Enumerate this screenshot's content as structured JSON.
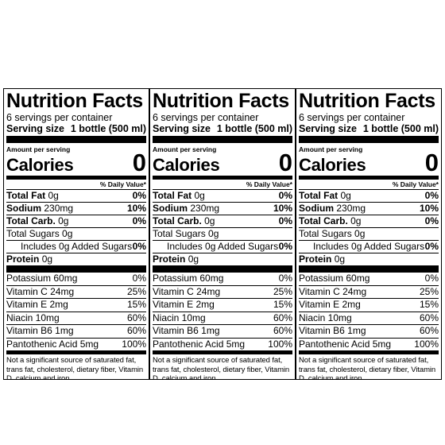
{
  "labels": [
    {
      "title": "Nutrition Facts",
      "servings_per_container": "6 servings per container",
      "serving_size_label": "Serving size",
      "serving_size_value": "1 bottle (500 ml)",
      "amount_per_serving": "Amount per serving",
      "calories_label": "Calories",
      "calories_value": "0",
      "daily_value_header": "% Daily Value*",
      "total_fat_label": "Total Fat",
      "total_fat_amount": "0g",
      "total_fat_dv": "0%",
      "sodium_label": "Sodium",
      "sodium_amount": "230mg",
      "sodium_dv": "10%",
      "total_carb_label": "Total Carb.",
      "total_carb_amount": "0g",
      "total_carb_dv": "0%",
      "total_sugars": "Total Sugars 0g",
      "added_sugars": "Includes 0g Added Sugars",
      "added_sugars_dv": "0%",
      "protein_label": "Protein",
      "protein_amount": "0g",
      "potassium": "Potassium  60mg",
      "potassium_dv": "0%",
      "vitamin_c": "Vitamin C  24mg",
      "vitamin_c_dv": "25%",
      "vitamin_e": "Vitamin E  2mg",
      "vitamin_e_dv": "15%",
      "niacin": "Niacin  10mg",
      "niacin_dv": "60%",
      "vitamin_b6": "Vitamin B6  1mg",
      "vitamin_b6_dv": "60%",
      "pantothenic_acid": "Pantothenic Acid   5mg",
      "pantothenic_acid_dv": "100%",
      "footnote": "Not a significant source of saturated fat, trans fat, cholesterol, dietary fiber, Vitamin D, calcium and iron."
    },
    {
      "title": "Nutrition Facts",
      "servings_per_container": "6 servings per container",
      "serving_size_label": "Serving size",
      "serving_size_value": "1 bottle (500 ml)",
      "amount_per_serving": "Amount per serving",
      "calories_label": "Calories",
      "calories_value": "0",
      "daily_value_header": "% Daily Value*",
      "total_fat_label": "Total Fat",
      "total_fat_amount": "0g",
      "total_fat_dv": "0%",
      "sodium_label": "Sodium",
      "sodium_amount": "230mg",
      "sodium_dv": "10%",
      "total_carb_label": "Total Carb.",
      "total_carb_amount": "0g",
      "total_carb_dv": "0%",
      "total_sugars": "Total Sugars 0g",
      "added_sugars": "Includes 0g Added Sugars",
      "added_sugars_dv": "0%",
      "protein_label": "Protein",
      "protein_amount": "0g",
      "potassium": "Potassium  60mg",
      "potassium_dv": "0%",
      "vitamin_c": "Vitamin C  24mg",
      "vitamin_c_dv": "25%",
      "vitamin_e": "Vitamin E  2mg",
      "vitamin_e_dv": "15%",
      "niacin": "Niacin  10mg",
      "niacin_dv": "60%",
      "vitamin_b6": "Vitamin B6  1mg",
      "vitamin_b6_dv": "60%",
      "pantothenic_acid": "Pantothenic Acid   5mg",
      "pantothenic_acid_dv": "100%",
      "footnote": "Not a significant source of saturated fat, trans fat, cholesterol, dietary fiber, Vitamin D, calcium and iron."
    },
    {
      "title": "Nutrition Facts",
      "servings_per_container": "6 servings per container",
      "serving_size_label": "Serving size",
      "serving_size_value": "1 bottle (500 ml)",
      "amount_per_serving": "Amount per serving",
      "calories_label": "Calories",
      "calories_value": "0",
      "daily_value_header": "% Daily Value*",
      "total_fat_label": "Total Fat",
      "total_fat_amount": "0g",
      "total_fat_dv": "0%",
      "sodium_label": "Sodium",
      "sodium_amount": "230mg",
      "sodium_dv": "10%",
      "total_carb_label": "Total Carb.",
      "total_carb_amount": "0g",
      "total_carb_dv": "0%",
      "total_sugars": "Total Sugars 0g",
      "added_sugars": "Includes 0g Added Sugars",
      "added_sugars_dv": "0%",
      "protein_label": "Protein",
      "protein_amount": "0g",
      "potassium": "Potassium  60mg",
      "potassium_dv": "0%",
      "vitamin_c": "Vitamin C  24mg",
      "vitamin_c_dv": "25%",
      "vitamin_e": "Vitamin E  2mg",
      "vitamin_e_dv": "15%",
      "niacin": "Niacin  10mg",
      "niacin_dv": "60%",
      "vitamin_b6": "Vitamin B6  1mg",
      "vitamin_b6_dv": "60%",
      "pantothenic_acid": "Pantothenic Acid   5mg",
      "pantothenic_acid_dv": "100%",
      "footnote": "Not a significant source of saturated fat, trans fat, cholesterol, dietary fiber, Vitamin D, calcium and iron."
    }
  ]
}
